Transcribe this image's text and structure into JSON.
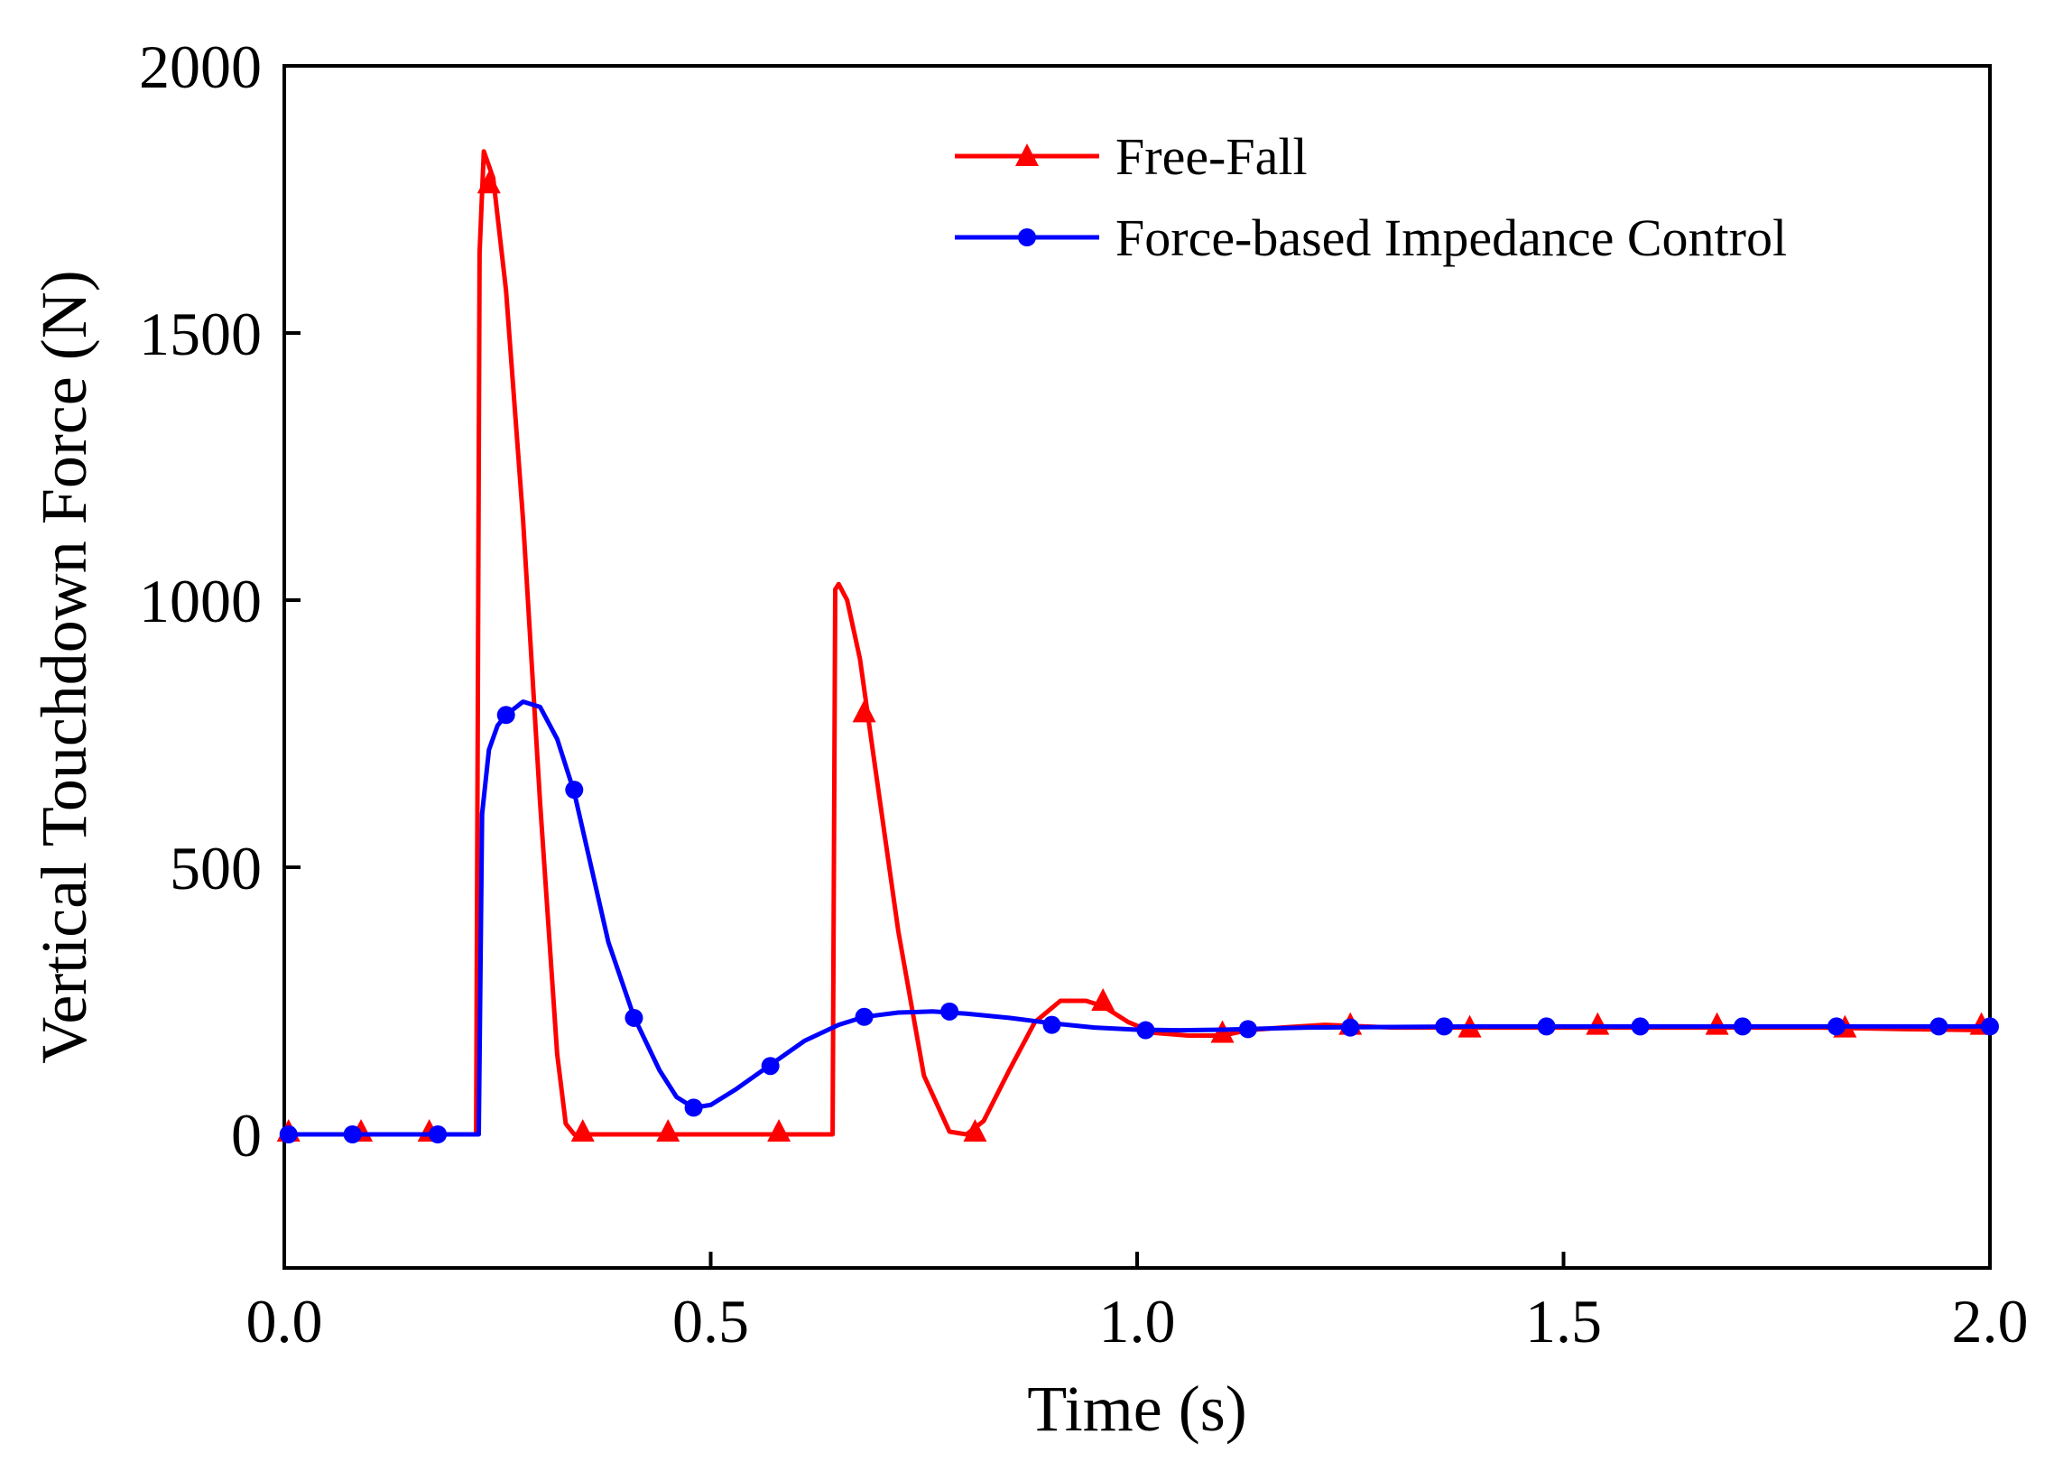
{
  "chart_data": {
    "type": "line",
    "title": "",
    "xlabel": "Time (s)",
    "ylabel": "Vertical Touchdown Force (N)",
    "xlim": [
      0,
      2.0
    ],
    "ylim": [
      -250,
      2000
    ],
    "xticks": [
      0.0,
      0.5,
      1.0,
      1.5,
      2.0
    ],
    "xtick_labels": [
      "0.0",
      "0.5",
      "1.0",
      "1.5",
      "2.0"
    ],
    "yticks": [
      0,
      500,
      1000,
      1500,
      2000
    ],
    "ytick_labels": [
      "0",
      "500",
      "1000",
      "1500",
      "2000"
    ],
    "grid": false,
    "legend_position": "top-right",
    "series": [
      {
        "name": "Free-Fall",
        "color": "#ff0000",
        "marker": "triangle",
        "x": [
          0.0,
          0.225,
          0.229,
          0.234,
          0.245,
          0.26,
          0.28,
          0.3,
          0.32,
          0.33,
          0.34,
          0.36,
          0.4,
          0.5,
          0.6,
          0.643,
          0.646,
          0.65,
          0.66,
          0.675,
          0.69,
          0.72,
          0.75,
          0.78,
          0.8,
          0.82,
          0.85,
          0.88,
          0.91,
          0.94,
          0.96,
          0.99,
          1.02,
          1.06,
          1.1,
          1.13,
          1.17,
          1.22,
          1.3,
          1.4,
          1.5,
          1.6,
          1.7,
          1.8,
          1.9,
          2.0
        ],
        "y": [
          0,
          0,
          1650,
          1840,
          1790,
          1580,
          1150,
          620,
          150,
          20,
          0,
          0,
          0,
          0,
          0,
          0,
          1020,
          1030,
          1000,
          890,
          720,
          380,
          110,
          5,
          0,
          25,
          120,
          210,
          250,
          250,
          240,
          210,
          190,
          185,
          185,
          195,
          200,
          205,
          200,
          200,
          200,
          200,
          200,
          200,
          197,
          195
        ],
        "marker_x": [
          0.005,
          0.09,
          0.17,
          0.24,
          0.35,
          0.45,
          0.58,
          0.68,
          0.81,
          0.96,
          1.1,
          1.25,
          1.39,
          1.54,
          1.68,
          1.83,
          1.99
        ],
        "marker_y": [
          5,
          5,
          5,
          1780,
          5,
          5,
          5,
          790,
          5,
          250,
          190,
          205,
          200,
          205,
          205,
          200,
          205
        ]
      },
      {
        "name": "Force-based Impedance Control",
        "color": "#0000ff",
        "marker": "circle",
        "x": [
          0.0,
          0.228,
          0.232,
          0.24,
          0.25,
          0.26,
          0.28,
          0.3,
          0.32,
          0.34,
          0.36,
          0.38,
          0.41,
          0.44,
          0.46,
          0.48,
          0.5,
          0.53,
          0.57,
          0.61,
          0.65,
          0.68,
          0.72,
          0.76,
          0.8,
          0.85,
          0.9,
          0.95,
          1.0,
          1.05,
          1.1,
          1.15,
          1.2,
          1.3,
          1.4,
          1.5,
          1.6,
          1.7,
          1.8,
          1.9,
          2.0
        ],
        "y": [
          0,
          0,
          600,
          720,
          765,
          785,
          810,
          800,
          740,
          640,
          500,
          360,
          220,
          120,
          70,
          50,
          55,
          85,
          130,
          175,
          205,
          220,
          228,
          230,
          226,
          218,
          208,
          200,
          196,
          195,
          196,
          198,
          200,
          201,
          202,
          202,
          202,
          202,
          202,
          202,
          202
        ],
        "marker_x": [
          0.005,
          0.08,
          0.18,
          0.26,
          0.34,
          0.41,
          0.48,
          0.57,
          0.68,
          0.78,
          0.9,
          1.01,
          1.13,
          1.25,
          1.36,
          1.48,
          1.59,
          1.71,
          1.82,
          1.94,
          2.0
        ],
        "marker_y": [
          0,
          0,
          0,
          785,
          645,
          218,
          50,
          128,
          220,
          230,
          205,
          195,
          197,
          200,
          202,
          202,
          202,
          202,
          202,
          202,
          202
        ]
      }
    ]
  }
}
